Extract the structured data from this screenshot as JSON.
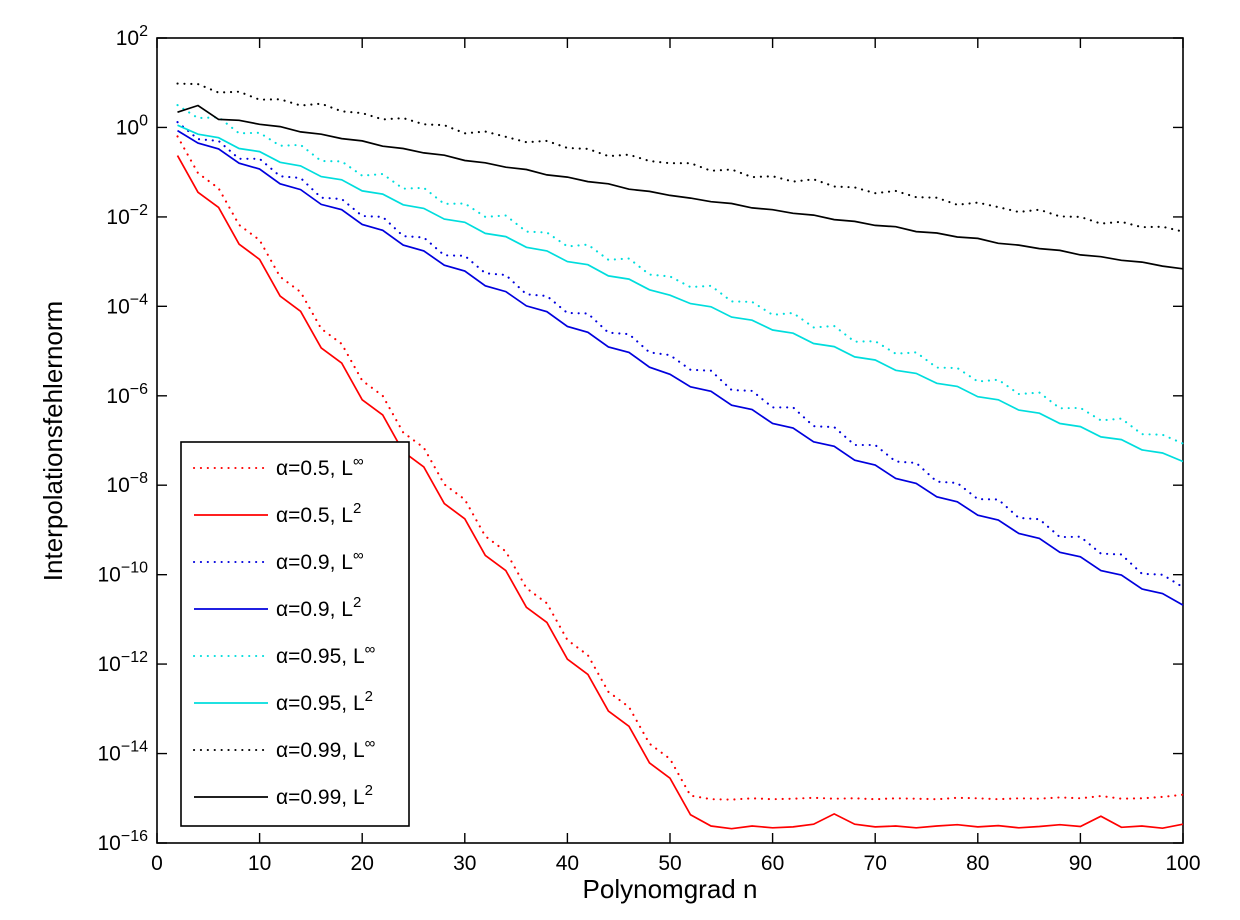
{
  "chart_data": {
    "type": "line",
    "title": "",
    "xlabel": "Polynomgrad n",
    "ylabel": "Interpolationsfehlernorm",
    "x_range": [
      0,
      100
    ],
    "x_ticks": [
      0,
      10,
      20,
      30,
      40,
      50,
      60,
      70,
      80,
      90,
      100
    ],
    "y_scale": "log10",
    "y_range_exponents": [
      -16,
      2
    ],
    "y_tick_exponents": [
      2,
      0,
      -2,
      -4,
      -6,
      -8,
      -10,
      -12,
      -14,
      -16
    ],
    "grid": false,
    "legend_position": "inside-bottom-left",
    "axis_color": "#000000",
    "background_color": "#ffffff",
    "n_values": [
      2,
      4,
      6,
      8,
      10,
      12,
      14,
      16,
      18,
      20,
      22,
      24,
      26,
      28,
      30,
      32,
      34,
      36,
      38,
      40,
      42,
      44,
      46,
      48,
      50,
      52,
      54,
      56,
      58,
      60,
      62,
      64,
      66,
      68,
      70,
      72,
      74,
      76,
      78,
      80,
      82,
      84,
      86,
      88,
      90,
      92,
      94,
      96,
      98,
      100
    ],
    "series": [
      {
        "id": "a05-linf",
        "label": "α=0.5, L∞",
        "label_base": "α=0.5, L",
        "label_sup": "∞",
        "color": "#ff0000",
        "style": "dotted",
        "log10_values": [
          -0.2,
          -1.02,
          -1.36,
          -2.18,
          -2.52,
          -3.34,
          -3.68,
          -4.5,
          -4.84,
          -5.66,
          -6.0,
          -6.82,
          -7.16,
          -7.98,
          -8.32,
          -9.14,
          -9.48,
          -10.3,
          -10.64,
          -11.46,
          -11.8,
          -12.62,
          -12.96,
          -13.78,
          -14.12,
          -14.94,
          -15.02,
          -15.03,
          -15.0,
          -15.02,
          -15.01,
          -14.99,
          -15.01,
          -15.0,
          -15.02,
          -15.0,
          -15.01,
          -15.02,
          -14.99,
          -15.0,
          -15.02,
          -15.0,
          -15.01,
          -14.98,
          -15.0,
          -14.95,
          -15.01,
          -15.0,
          -14.97,
          -14.92
        ]
      },
      {
        "id": "a05-l2",
        "label": "α=0.5, L2",
        "label_base": "α=0.5, L",
        "label_sup": "2",
        "color": "#ff0000",
        "style": "solid",
        "log10_values": [
          -0.63,
          -1.45,
          -1.79,
          -2.61,
          -2.95,
          -3.77,
          -4.11,
          -4.93,
          -5.27,
          -6.09,
          -6.43,
          -7.25,
          -7.59,
          -8.41,
          -8.75,
          -9.57,
          -9.91,
          -10.73,
          -11.07,
          -11.89,
          -12.23,
          -13.05,
          -13.39,
          -14.21,
          -14.55,
          -15.37,
          -15.62,
          -15.68,
          -15.62,
          -15.66,
          -15.64,
          -15.58,
          -15.35,
          -15.58,
          -15.64,
          -15.62,
          -15.66,
          -15.62,
          -15.59,
          -15.64,
          -15.61,
          -15.66,
          -15.63,
          -15.59,
          -15.63,
          -15.4,
          -15.65,
          -15.62,
          -15.67,
          -15.58
        ]
      },
      {
        "id": "a09-linf",
        "label": "α=0.9, L∞",
        "label_base": "α=0.9, L",
        "label_sup": "∞",
        "color": "#0000dd",
        "style": "dotted",
        "log10_values": [
          0.12,
          -0.26,
          -0.3,
          -0.7,
          -0.7,
          -1.09,
          -1.13,
          -1.57,
          -1.6,
          -1.98,
          -2.0,
          -2.43,
          -2.46,
          -2.86,
          -2.87,
          -3.26,
          -3.3,
          -3.73,
          -3.77,
          -4.15,
          -4.16,
          -4.59,
          -4.62,
          -5.03,
          -5.09,
          -5.42,
          -5.44,
          -5.87,
          -5.89,
          -6.26,
          -6.26,
          -6.68,
          -6.7,
          -7.1,
          -7.1,
          -7.47,
          -7.5,
          -7.92,
          -7.95,
          -8.31,
          -8.32,
          -8.73,
          -8.76,
          -9.16,
          -9.15,
          -9.53,
          -9.55,
          -9.98,
          -10.0,
          -10.28
        ]
      },
      {
        "id": "a09-l2",
        "label": "α=0.9, L2",
        "label_base": "α=0.9, L",
        "label_sup": "2",
        "color": "#0000dd",
        "style": "solid",
        "log10_values": [
          -0.07,
          -0.35,
          -0.48,
          -0.8,
          -0.93,
          -1.26,
          -1.39,
          -1.72,
          -1.84,
          -2.17,
          -2.3,
          -2.63,
          -2.76,
          -3.08,
          -3.21,
          -3.54,
          -3.67,
          -3.99,
          -4.12,
          -4.45,
          -4.58,
          -4.91,
          -5.03,
          -5.36,
          -5.52,
          -5.8,
          -5.9,
          -6.21,
          -6.31,
          -6.62,
          -6.72,
          -7.03,
          -7.13,
          -7.44,
          -7.55,
          -7.85,
          -7.96,
          -8.26,
          -8.37,
          -8.67,
          -8.78,
          -9.08,
          -9.19,
          -9.5,
          -9.6,
          -9.91,
          -10.01,
          -10.32,
          -10.42,
          -10.68
        ]
      },
      {
        "id": "a095-linf",
        "label": "α=0.95, L∞",
        "label_base": "α=0.95, L",
        "label_sup": "∞",
        "color": "#00dddd",
        "style": "dotted",
        "log10_values": [
          0.5,
          0.21,
          0.23,
          -0.13,
          -0.12,
          -0.41,
          -0.39,
          -0.75,
          -0.76,
          -1.08,
          -1.04,
          -1.37,
          -1.35,
          -1.71,
          -1.7,
          -2.0,
          -1.97,
          -2.33,
          -2.35,
          -2.66,
          -2.62,
          -2.96,
          -2.93,
          -3.29,
          -3.33,
          -3.57,
          -3.54,
          -3.89,
          -3.9,
          -4.19,
          -4.15,
          -4.47,
          -4.44,
          -4.79,
          -4.78,
          -5.06,
          -5.03,
          -5.37,
          -5.38,
          -5.68,
          -5.64,
          -5.96,
          -5.93,
          -6.28,
          -6.27,
          -6.55,
          -6.51,
          -6.86,
          -6.87,
          -7.07
        ]
      },
      {
        "id": "a095-l2",
        "label": "α=0.95, L2",
        "label_base": "α=0.95, L",
        "label_sup": "2",
        "color": "#00dddd",
        "style": "solid",
        "log10_values": [
          0.05,
          -0.15,
          -0.23,
          -0.47,
          -0.54,
          -0.78,
          -0.86,
          -1.1,
          -1.17,
          -1.42,
          -1.49,
          -1.73,
          -1.81,
          -2.05,
          -2.12,
          -2.37,
          -2.44,
          -2.68,
          -2.76,
          -3.0,
          -3.07,
          -3.32,
          -3.39,
          -3.63,
          -3.75,
          -3.94,
          -4.01,
          -4.24,
          -4.31,
          -4.53,
          -4.6,
          -4.83,
          -4.9,
          -5.13,
          -5.2,
          -5.43,
          -5.5,
          -5.72,
          -5.79,
          -6.02,
          -6.09,
          -6.32,
          -6.39,
          -6.62,
          -6.69,
          -6.92,
          -6.98,
          -7.21,
          -7.28,
          -7.47
        ]
      },
      {
        "id": "a099-linf",
        "label": "α=0.99, L∞",
        "label_base": "α=0.99, L",
        "label_sup": "∞",
        "color": "#000000",
        "style": "dotted",
        "log10_values": [
          0.98,
          0.97,
          0.78,
          0.8,
          0.62,
          0.63,
          0.49,
          0.53,
          0.36,
          0.32,
          0.18,
          0.21,
          0.07,
          0.05,
          -0.13,
          -0.09,
          -0.21,
          -0.33,
          -0.3,
          -0.46,
          -0.48,
          -0.64,
          -0.61,
          -0.75,
          -0.8,
          -0.8,
          -0.97,
          -0.94,
          -1.11,
          -1.09,
          -1.21,
          -1.16,
          -1.32,
          -1.34,
          -1.47,
          -1.42,
          -1.56,
          -1.57,
          -1.73,
          -1.68,
          -1.78,
          -1.89,
          -1.84,
          -1.99,
          -2.0,
          -2.15,
          -2.11,
          -2.23,
          -2.22,
          -2.33
        ]
      },
      {
        "id": "a099-l2",
        "label": "α=0.99, L2",
        "label_base": "α=0.99, L",
        "label_sup": "2",
        "color": "#000000",
        "style": "solid",
        "log10_values": [
          0.34,
          0.49,
          0.18,
          0.16,
          0.07,
          0.02,
          -0.1,
          -0.15,
          -0.25,
          -0.3,
          -0.42,
          -0.47,
          -0.57,
          -0.62,
          -0.74,
          -0.79,
          -0.89,
          -0.94,
          -1.06,
          -1.11,
          -1.21,
          -1.26,
          -1.38,
          -1.43,
          -1.52,
          -1.58,
          -1.66,
          -1.7,
          -1.8,
          -1.84,
          -1.92,
          -1.96,
          -2.06,
          -2.1,
          -2.19,
          -2.22,
          -2.33,
          -2.36,
          -2.45,
          -2.48,
          -2.59,
          -2.63,
          -2.71,
          -2.75,
          -2.85,
          -2.89,
          -2.97,
          -3.01,
          -3.1,
          -3.16
        ]
      }
    ]
  }
}
